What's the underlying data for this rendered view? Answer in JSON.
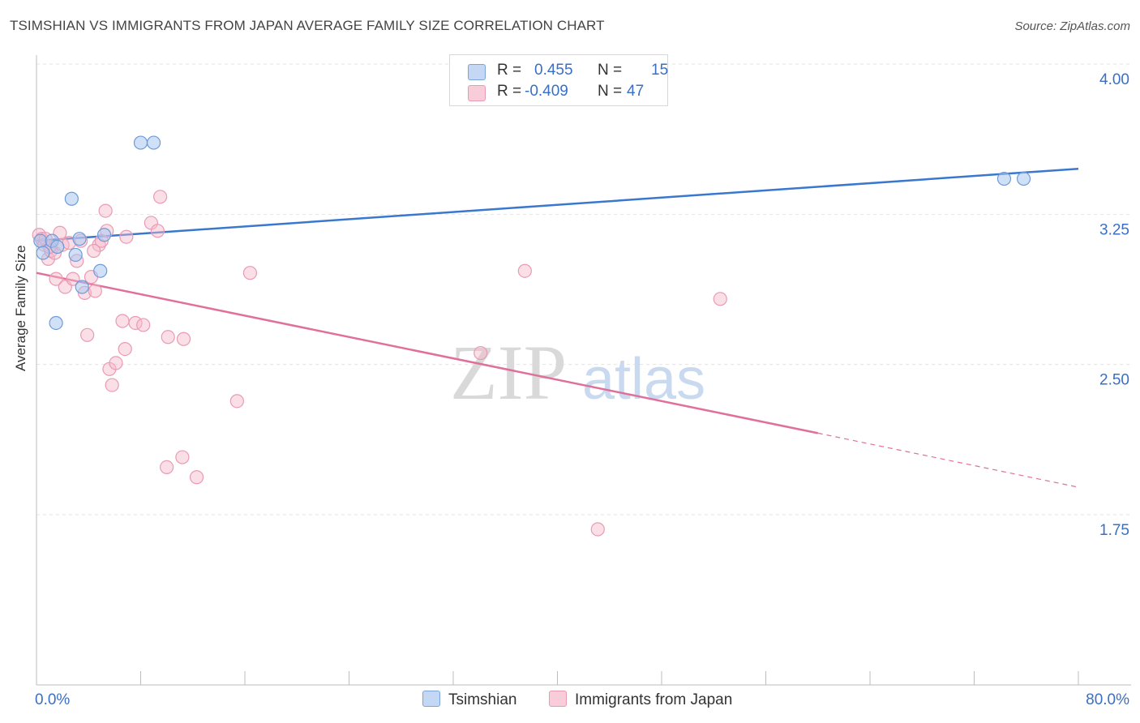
{
  "title": "TSIMSHIAN VS IMMIGRANTS FROM JAPAN AVERAGE FAMILY SIZE CORRELATION CHART",
  "source": "Source: ZipAtlas.com",
  "watermark": {
    "zip": "ZIP",
    "atlas": "atlas"
  },
  "legend": {
    "r_label": "R =",
    "n_label": "N =",
    "series": [
      {
        "name": "Tsimshian",
        "r": "0.455",
        "n": "15",
        "color": "#a9c6ef",
        "line": "#3a78d0"
      },
      {
        "name": "Immigrants from Japan",
        "r": "-0.409",
        "n": "47",
        "color": "#f6b7c9",
        "line": "#e0709a"
      }
    ]
  },
  "chart_data": {
    "type": "scatter",
    "title": "TSIMSHIAN VS IMMIGRANTS FROM JAPAN AVERAGE FAMILY SIZE CORRELATION CHART",
    "xlabel": "",
    "ylabel": "Average Family Size",
    "xlim": [
      0,
      80
    ],
    "ylim": [
      1.0,
      4.2
    ],
    "x_tick_labels": [
      "0.0%",
      "80.0%"
    ],
    "y_ticks": [
      1.75,
      2.5,
      3.25,
      4.0
    ],
    "y_tick_labels": [
      "1.75",
      "2.50",
      "3.25",
      "4.00"
    ],
    "series": [
      {
        "name": "Tsimshian",
        "points": [
          [
            0.3,
            3.19
          ],
          [
            0.5,
            3.13
          ],
          [
            1.2,
            3.19
          ],
          [
            1.6,
            3.16
          ],
          [
            1.5,
            2.78
          ],
          [
            2.7,
            3.4
          ],
          [
            3.0,
            3.12
          ],
          [
            3.5,
            2.96
          ],
          [
            3.3,
            3.2
          ],
          [
            5.2,
            3.22
          ],
          [
            4.9,
            3.04
          ],
          [
            8.0,
            3.68
          ],
          [
            9.0,
            3.68
          ],
          [
            74.3,
            3.5
          ],
          [
            75.8,
            3.5
          ]
        ],
        "trend": {
          "x0": 0,
          "y0": 3.19,
          "x1": 80,
          "y1": 3.55
        }
      },
      {
        "name": "Immigrants from Japan",
        "points": [
          [
            0.2,
            3.22
          ],
          [
            0.4,
            3.2
          ],
          [
            0.6,
            3.17
          ],
          [
            0.9,
            3.1
          ],
          [
            1.1,
            3.14
          ],
          [
            1.4,
            3.13
          ],
          [
            1.8,
            3.23
          ],
          [
            1.5,
            3.0
          ],
          [
            2.0,
            3.17
          ],
          [
            2.2,
            2.96
          ],
          [
            2.8,
            3.0
          ],
          [
            3.1,
            3.09
          ],
          [
            3.4,
            3.19
          ],
          [
            3.7,
            2.93
          ],
          [
            4.2,
            3.01
          ],
          [
            4.5,
            2.94
          ],
          [
            4.8,
            3.17
          ],
          [
            5.0,
            3.19
          ],
          [
            5.3,
            3.34
          ],
          [
            5.4,
            3.24
          ],
          [
            4.4,
            3.14
          ],
          [
            3.9,
            2.72
          ],
          [
            5.6,
            2.55
          ],
          [
            5.8,
            2.47
          ],
          [
            6.1,
            2.58
          ],
          [
            6.6,
            2.79
          ],
          [
            6.9,
            3.21
          ],
          [
            6.8,
            2.65
          ],
          [
            7.6,
            2.78
          ],
          [
            8.2,
            2.77
          ],
          [
            8.8,
            3.28
          ],
          [
            9.3,
            3.24
          ],
          [
            9.5,
            3.41
          ],
          [
            10.1,
            2.71
          ],
          [
            11.3,
            2.7
          ],
          [
            10.0,
            2.06
          ],
          [
            11.2,
            2.11
          ],
          [
            12.3,
            2.01
          ],
          [
            15.4,
            2.39
          ],
          [
            16.4,
            3.03
          ],
          [
            34.1,
            2.63
          ],
          [
            37.5,
            3.04
          ],
          [
            43.1,
            1.75
          ],
          [
            52.5,
            2.9
          ],
          [
            1.0,
            3.16
          ],
          [
            2.5,
            3.18
          ],
          [
            0.7,
            3.2
          ]
        ],
        "trend": {
          "x0": 0,
          "y0": 3.03,
          "x1": 60,
          "y1": 2.23,
          "dash_to_x": 80,
          "dash_to_y": 1.96
        }
      }
    ]
  }
}
